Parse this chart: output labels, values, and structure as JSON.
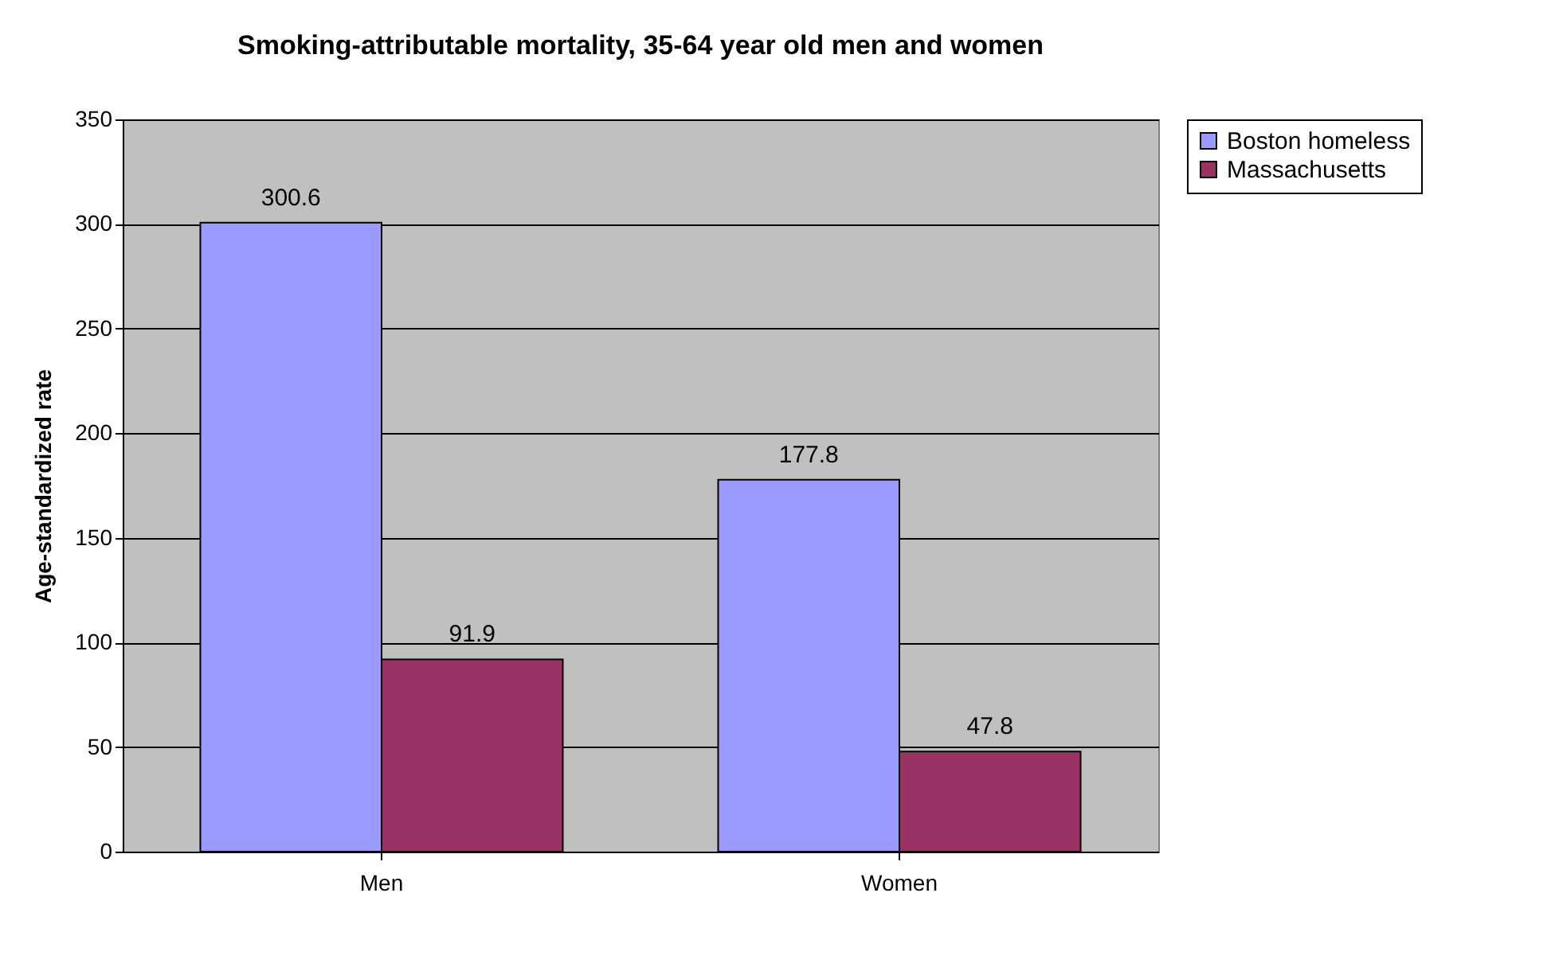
{
  "chart_data": {
    "type": "bar",
    "title": "Smoking-attributable mortality, 35-64 year old men and women",
    "ylabel": "Age-standardized rate",
    "categories": [
      "Men",
      "Women"
    ],
    "series": [
      {
        "name": "Boston homeless",
        "color": "#9999ff",
        "values": [
          300.6,
          177.8
        ]
      },
      {
        "name": "Massachusetts",
        "color": "#993366",
        "values": [
          91.9,
          47.8
        ]
      }
    ],
    "ylim": [
      0,
      350
    ],
    "yticks": [
      0,
      50,
      100,
      150,
      200,
      250,
      300,
      350
    ],
    "grid": "y",
    "legend": "right",
    "data_labels": true
  }
}
